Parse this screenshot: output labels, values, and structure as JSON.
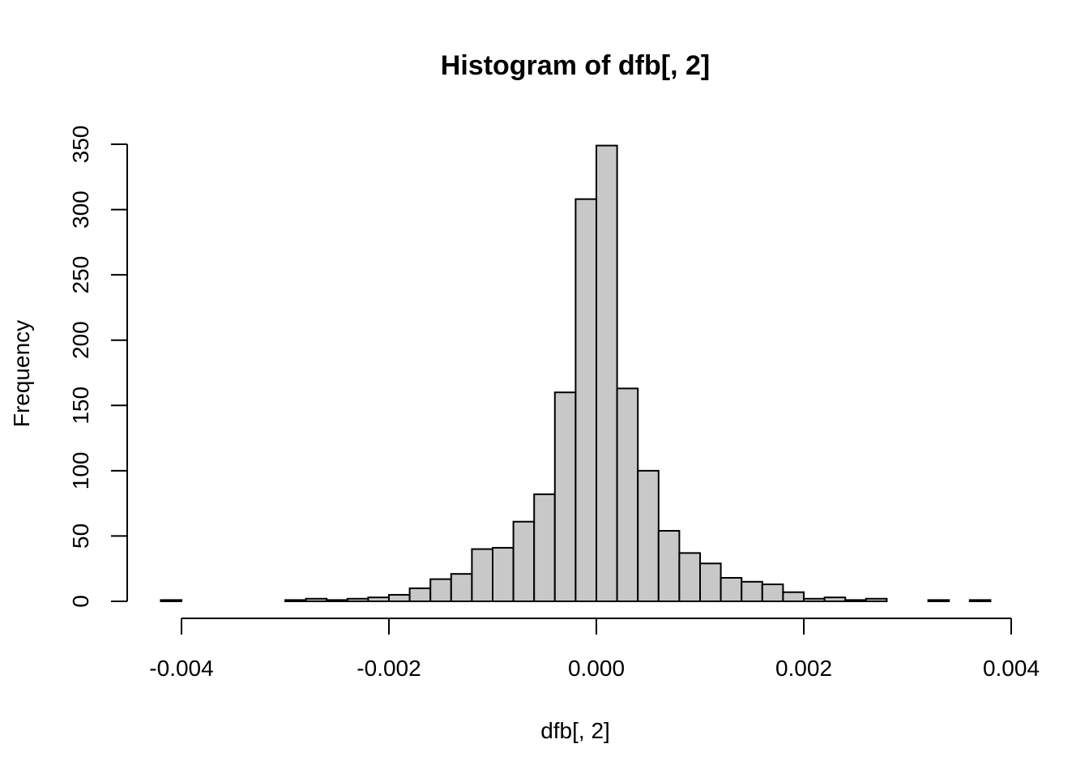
{
  "chart_data": {
    "type": "bar",
    "title": "Histogram of dfb[, 2]",
    "xlabel": "dfb[, 2]",
    "ylabel": "Frequency",
    "bin_width": 0.0002,
    "bin_start": -0.0042,
    "counts": [
      1,
      0,
      0,
      0,
      0,
      0,
      1,
      2,
      1,
      2,
      3,
      5,
      10,
      17,
      21,
      40,
      41,
      61,
      82,
      160,
      308,
      349,
      163,
      100,
      54,
      37,
      29,
      18,
      15,
      13,
      7,
      2,
      3,
      1,
      2,
      0,
      0,
      1,
      0,
      1
    ],
    "xlim": [
      -0.0042,
      0.0038
    ],
    "ylim": [
      0,
      350
    ],
    "xticks": [
      -0.004,
      -0.002,
      0.0,
      0.002,
      0.004
    ],
    "xtick_labels": [
      "-0.004",
      "-0.002",
      "0.000",
      "0.002",
      "0.004"
    ],
    "yticks": [
      0,
      50,
      100,
      150,
      200,
      250,
      300,
      350
    ],
    "ytick_labels": [
      "0",
      "50",
      "100",
      "150",
      "200",
      "250",
      "300",
      "350"
    ],
    "grid": false,
    "bar_color": "#c8c8c8"
  }
}
